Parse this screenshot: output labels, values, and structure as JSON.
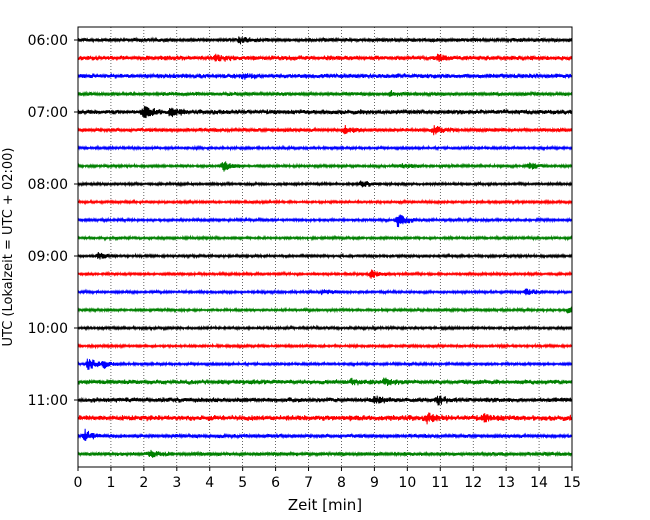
{
  "chart_data": {
    "type": "line",
    "title": "",
    "xlabel": "Zeit  [min]",
    "ylabel": "UTC (Lokalzeit = UTC + 02:00)",
    "xlim": [
      0,
      15
    ],
    "x_ticks": [
      0,
      1,
      2,
      3,
      4,
      5,
      6,
      7,
      8,
      9,
      10,
      11,
      12,
      13,
      14,
      15
    ],
    "y_tick_labels": [
      "06:00",
      "07:00",
      "08:00",
      "09:00",
      "10:00",
      "11:00"
    ],
    "grid_x": true,
    "trace_interval_min": 15,
    "start_time": "06:00",
    "trace_colors": [
      "#000000",
      "#ff0000",
      "#0000ff",
      "#008000"
    ],
    "series": [
      {
        "label": "06:00",
        "color": "#000000",
        "amp": 2.0,
        "events": [
          {
            "t": 4.9,
            "a": 2.5
          }
        ]
      },
      {
        "label": "06:15",
        "color": "#ff0000",
        "amp": 2.5,
        "events": [
          {
            "t": 4.2,
            "a": 3
          },
          {
            "t": 10.9,
            "a": 3
          }
        ]
      },
      {
        "label": "06:30",
        "color": "#0000ff",
        "amp": 2.5,
        "events": [
          {
            "t": 5.0,
            "a": 2.5
          }
        ]
      },
      {
        "label": "06:45",
        "color": "#008000",
        "amp": 2.0,
        "events": [
          {
            "t": 9.5,
            "a": 3
          }
        ]
      },
      {
        "label": "07:00",
        "color": "#000000",
        "amp": 2.5,
        "events": [
          {
            "t": 2.0,
            "a": 6
          },
          {
            "t": 2.8,
            "a": 4
          }
        ]
      },
      {
        "label": "07:15",
        "color": "#ff0000",
        "amp": 2.0,
        "events": [
          {
            "t": 8.1,
            "a": 4
          },
          {
            "t": 10.8,
            "a": 4
          }
        ]
      },
      {
        "label": "07:30",
        "color": "#0000ff",
        "amp": 1.5,
        "events": []
      },
      {
        "label": "07:45",
        "color": "#008000",
        "amp": 1.5,
        "events": [
          {
            "t": 4.4,
            "a": 6
          },
          {
            "t": 9.8,
            "a": 3
          },
          {
            "t": 13.7,
            "a": 4
          }
        ]
      },
      {
        "label": "08:00",
        "color": "#000000",
        "amp": 1.5,
        "events": [
          {
            "t": 8.6,
            "a": 3
          }
        ]
      },
      {
        "label": "08:15",
        "color": "#ff0000",
        "amp": 1.5,
        "events": []
      },
      {
        "label": "08:30",
        "color": "#0000ff",
        "amp": 1.5,
        "events": [
          {
            "t": 9.7,
            "a": 7
          }
        ]
      },
      {
        "label": "08:45",
        "color": "#008000",
        "amp": 1.5,
        "events": []
      },
      {
        "label": "09:00",
        "color": "#000000",
        "amp": 1.5,
        "events": [
          {
            "t": 0.6,
            "a": 3
          }
        ]
      },
      {
        "label": "09:15",
        "color": "#ff0000",
        "amp": 1.5,
        "events": [
          {
            "t": 8.9,
            "a": 4
          }
        ]
      },
      {
        "label": "09:30",
        "color": "#0000ff",
        "amp": 1.5,
        "events": [
          {
            "t": 7.4,
            "a": 3
          },
          {
            "t": 13.6,
            "a": 3
          }
        ]
      },
      {
        "label": "09:45",
        "color": "#008000",
        "amp": 1.5,
        "events": [
          {
            "t": 14.9,
            "a": 3
          }
        ]
      },
      {
        "label": "10:00",
        "color": "#000000",
        "amp": 1.5,
        "events": []
      },
      {
        "label": "10:15",
        "color": "#ff0000",
        "amp": 1.5,
        "events": []
      },
      {
        "label": "10:30",
        "color": "#0000ff",
        "amp": 1.5,
        "events": [
          {
            "t": 0.3,
            "a": 6
          },
          {
            "t": 0.8,
            "a": 3
          }
        ]
      },
      {
        "label": "10:45",
        "color": "#008000",
        "amp": 2.5,
        "events": [
          {
            "t": 8.3,
            "a": 3
          },
          {
            "t": 9.3,
            "a": 3
          }
        ]
      },
      {
        "label": "11:00",
        "color": "#000000",
        "amp": 2.5,
        "events": [
          {
            "t": 9.0,
            "a": 4
          },
          {
            "t": 10.9,
            "a": 4
          }
        ]
      },
      {
        "label": "11:15",
        "color": "#ff0000",
        "amp": 3.0,
        "events": [
          {
            "t": 10.6,
            "a": 4
          },
          {
            "t": 12.3,
            "a": 3
          }
        ]
      },
      {
        "label": "11:30",
        "color": "#0000ff",
        "amp": 2.0,
        "events": [
          {
            "t": 0.2,
            "a": 6
          }
        ]
      },
      {
        "label": "11:45",
        "color": "#008000",
        "amp": 2.0,
        "events": [
          {
            "t": 2.2,
            "a": 3
          }
        ]
      }
    ]
  }
}
